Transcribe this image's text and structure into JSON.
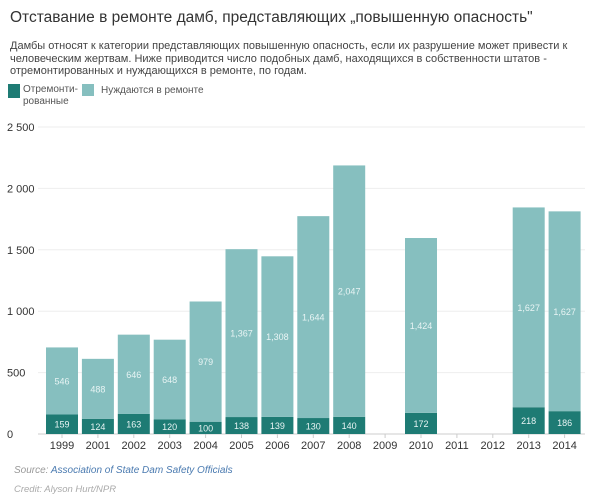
{
  "title": "Отставание в ремонте  дамб, представляющих „повышенную опасность\"",
  "subtitle": "Дамбы относят к категории представляющих повышенную опасность, если их разрушение может привести к человеческим жертвам.  Ниже приводится число подобных дамб, находящихся в собственности штатов          - отремонтированных и нуждающихся в ремонте, по годам.",
  "source_label": "Source: ",
  "source_link": "Association of State Dam Safety Officials",
  "credit": "Credit: Alyson Hurt/NPR",
  "chart_data": {
    "type": "bar",
    "stacked": true,
    "categories": [
      "1999",
      "2001",
      "2002",
      "2003",
      "2004",
      "2005",
      "2006",
      "2007",
      "2008",
      "2009",
      "2010",
      "2011",
      "2012",
      "2013",
      "2014"
    ],
    "series": [
      {
        "name": "Отремонти-рованные",
        "color": "#1e7b74",
        "values": [
          159,
          124,
          163,
          120,
          100,
          138,
          139,
          130,
          140,
          null,
          172,
          null,
          null,
          218,
          186
        ],
        "labels": [
          "159",
          "124",
          "163",
          "120",
          "100",
          "138",
          "139",
          "130",
          "140",
          "",
          "172",
          "",
          "",
          "218",
          "186"
        ]
      },
      {
        "name": "Нуждаются в ремонте",
        "color": "#86bfbf",
        "values": [
          546,
          488,
          646,
          648,
          979,
          1367,
          1308,
          1644,
          2047,
          null,
          1424,
          null,
          null,
          1627,
          1627
        ],
        "labels": [
          "546",
          "488",
          "646",
          "648",
          "979",
          "1,367",
          "1,308",
          "1,644",
          "2,047",
          "",
          "1,424",
          "",
          "",
          "1,627",
          "1,627"
        ]
      }
    ],
    "yticks": [
      "0",
      "500",
      "1 000",
      "1 500",
      "2 000",
      "2 500"
    ],
    "ylim": [
      0,
      2500
    ],
    "grid": true,
    "legend": "top-left"
  }
}
